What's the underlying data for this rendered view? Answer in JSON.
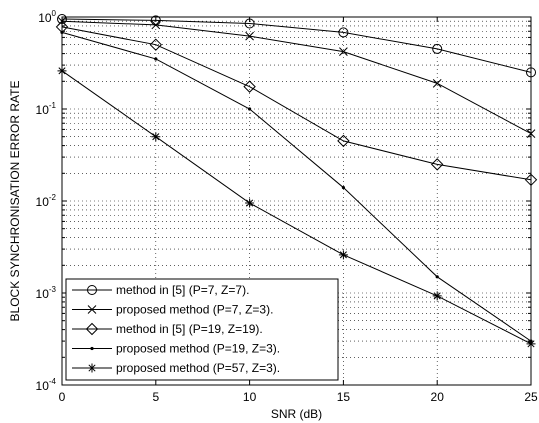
{
  "chart_data": {
    "type": "line",
    "title": "",
    "xlabel": "SNR (dB)",
    "ylabel": "BLOCK SYNCHRONISATION ERROR RATE",
    "xlim": [
      0,
      25
    ],
    "ylim": [
      0.0001,
      1
    ],
    "yscale": "log",
    "grid": true,
    "legend_position": "bottom-left",
    "x_ticks": [
      "0",
      "5",
      "10",
      "15",
      "20",
      "25"
    ],
    "y_ticks": [
      {
        "base": "10",
        "exp": "0"
      },
      {
        "base": "10",
        "exp": "-1"
      },
      {
        "base": "10",
        "exp": "-2"
      },
      {
        "base": "10",
        "exp": "-3"
      },
      {
        "base": "10",
        "exp": "-4"
      }
    ],
    "x": [
      0,
      5,
      10,
      15,
      20,
      25
    ],
    "series": [
      {
        "name": "method in [5] (P=7, Z=7).",
        "marker": "circle",
        "values": [
          0.95,
          0.92,
          0.85,
          0.68,
          0.45,
          0.25
        ]
      },
      {
        "name": "proposed method (P=7, Z=3).",
        "marker": "x",
        "values": [
          0.9,
          0.82,
          0.62,
          0.42,
          0.19,
          0.054
        ]
      },
      {
        "name": "method in [5] (P=19, Z=19).",
        "marker": "diamond",
        "values": [
          0.78,
          0.5,
          0.175,
          0.045,
          0.025,
          0.017
        ]
      },
      {
        "name": "proposed method (P=19, Z=3).",
        "marker": "dot",
        "values": [
          0.68,
          0.35,
          0.1,
          0.014,
          0.0015,
          0.0003
        ]
      },
      {
        "name": "proposed method (P=57, Z=3).",
        "marker": "star",
        "values": [
          0.26,
          0.05,
          0.0095,
          0.0026,
          0.00093,
          0.00028
        ]
      }
    ]
  }
}
